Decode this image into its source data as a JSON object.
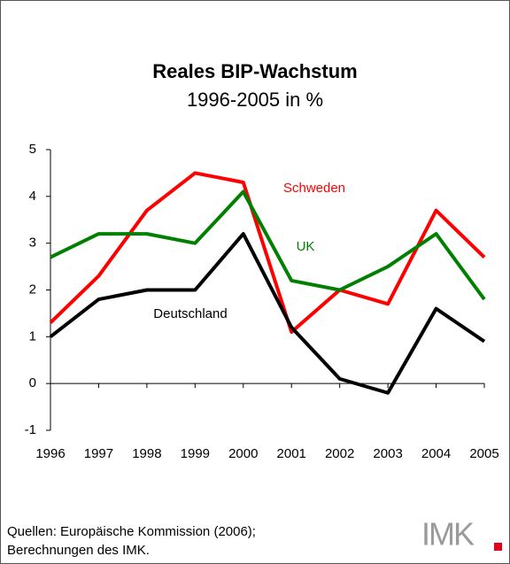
{
  "chart_data": {
    "type": "line",
    "title": "Reales BIP-Wachstum",
    "subtitle": "1996-2005 in %",
    "categories": [
      "1996",
      "1997",
      "1998",
      "1999",
      "2000",
      "2001",
      "2002",
      "2003",
      "2004",
      "2005"
    ],
    "series": [
      {
        "name": "Schweden",
        "color": "#ff0000",
        "values": [
          1.3,
          2.3,
          3.7,
          4.5,
          4.3,
          1.1,
          2.0,
          1.7,
          3.7,
          2.7
        ]
      },
      {
        "name": "UK",
        "color": "#008000",
        "values": [
          2.7,
          3.2,
          3.2,
          3.0,
          4.1,
          2.2,
          2.0,
          2.5,
          3.2,
          1.8
        ]
      },
      {
        "name": "Deutschland",
        "color": "#000000",
        "values": [
          1.0,
          1.8,
          2.0,
          2.0,
          3.2,
          1.2,
          0.1,
          -0.2,
          1.6,
          0.9
        ]
      }
    ],
    "ylim": [
      -1,
      5
    ],
    "yticks": [
      -1,
      0,
      1,
      2,
      3,
      4,
      5
    ],
    "source": [
      "Quellen: Europäische Kommission (2006);",
      "Berechnungen des IMK."
    ],
    "logo": "IMK"
  }
}
